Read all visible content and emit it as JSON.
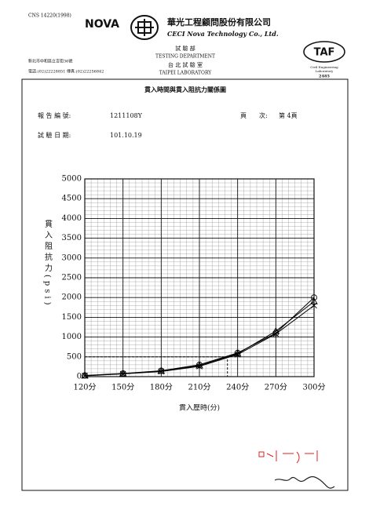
{
  "header": {
    "standard": "CNS 14220(1998)",
    "brand": "NOVA",
    "company_zh": "華光工程顧問股份有限公司",
    "company_en": "CECI Nova Technology Co., Ltd.",
    "dept_zh": "試 驗 部",
    "dept_en": "TESTING DEPARTMENT",
    "lab_zh": "台 北 試 驗 室",
    "lab_en": "TAIPEI LABORATORY",
    "address": "新北市中和區立言街36號",
    "contact": "電話:(02)22228851 傳真:(02)22256842",
    "taf": "TAF",
    "taf_sub1": "Civil Engineering",
    "taf_sub2": "Laboratory",
    "taf_no": "2485"
  },
  "report": {
    "title": "貫入時間與貫入阻抗力關係圖",
    "report_no_label": "報 告 編 號:",
    "report_no": "1211108Y",
    "page_label": "頁　　次:",
    "page": "第 4頁",
    "date_label": "試 驗 日 期:",
    "date": "101.10.19"
  },
  "chart_data": {
    "type": "line",
    "x_label": "貫入歷時(分)",
    "y_label": "貫入阻抗力(psi)",
    "xlim": [
      120,
      300
    ],
    "ylim": [
      0,
      5000
    ],
    "xticks": [
      {
        "value": 120,
        "label": "120分"
      },
      {
        "value": 150,
        "label": "150分"
      },
      {
        "value": 180,
        "label": "180分"
      },
      {
        "value": 210,
        "label": "210分"
      },
      {
        "value": 240,
        "label": "240分"
      },
      {
        "value": 270,
        "label": "270分"
      },
      {
        "value": 300,
        "label": "300分"
      }
    ],
    "yticks": [
      0,
      500,
      1000,
      1500,
      2000,
      2500,
      3000,
      3500,
      4000,
      4500,
      5000
    ],
    "grid": true,
    "x_minor_step": 5,
    "y_minor_step": 100,
    "x": [
      120,
      150,
      180,
      210,
      240,
      270,
      300
    ],
    "series": [
      {
        "marker": "circle",
        "color": "#000000",
        "values": [
          30,
          80,
          150,
          300,
          600,
          1100,
          2000
        ]
      },
      {
        "marker": "triangle",
        "color": "#000000",
        "values": [
          25,
          75,
          140,
          280,
          580,
          1150,
          1900
        ]
      },
      {
        "marker": "x",
        "color": "#000000",
        "values": [
          20,
          70,
          130,
          260,
          560,
          1080,
          1800
        ]
      }
    ],
    "reference": {
      "x": 232,
      "y": 500
    }
  }
}
